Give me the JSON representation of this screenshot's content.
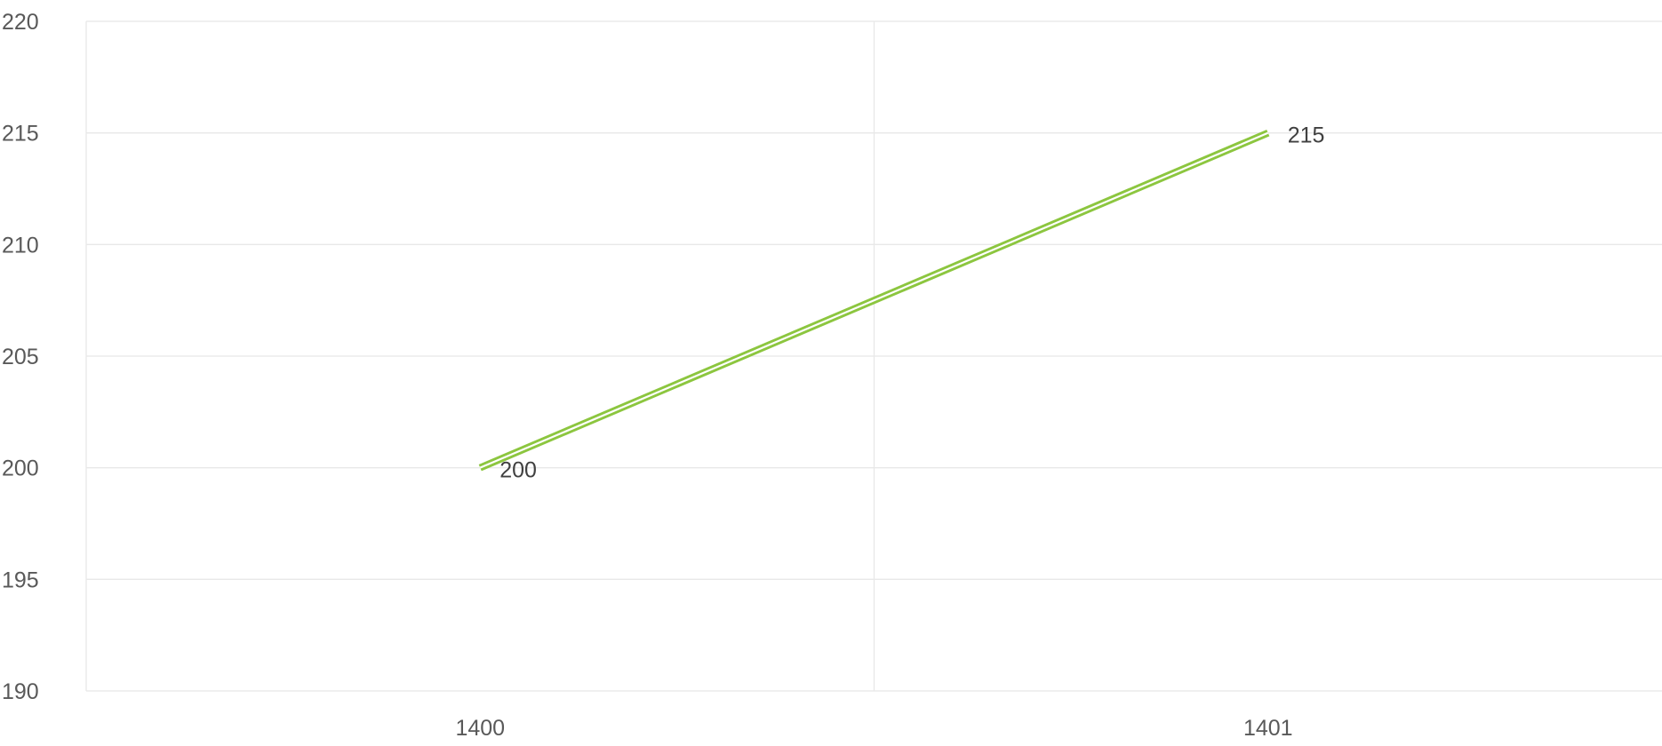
{
  "chart_data": {
    "type": "line",
    "title": "",
    "xlabel": "",
    "ylabel": "",
    "categories": [
      "1400",
      "1401"
    ],
    "series": [
      {
        "values": [
          200,
          215
        ],
        "color": "#8CC63F",
        "line_style": "double",
        "data_labels": [
          "200",
          "215"
        ]
      }
    ],
    "ylim": [
      190,
      220
    ],
    "y_ticks": [
      190,
      195,
      200,
      205,
      210,
      215,
      220
    ],
    "y_tick_labels": [
      "190",
      "195",
      "200",
      "205",
      "210",
      "215",
      "220"
    ],
    "grid": {
      "horizontal": true,
      "vertical_category_separators": true,
      "color": "#E8E8E8"
    },
    "legend": "none"
  }
}
